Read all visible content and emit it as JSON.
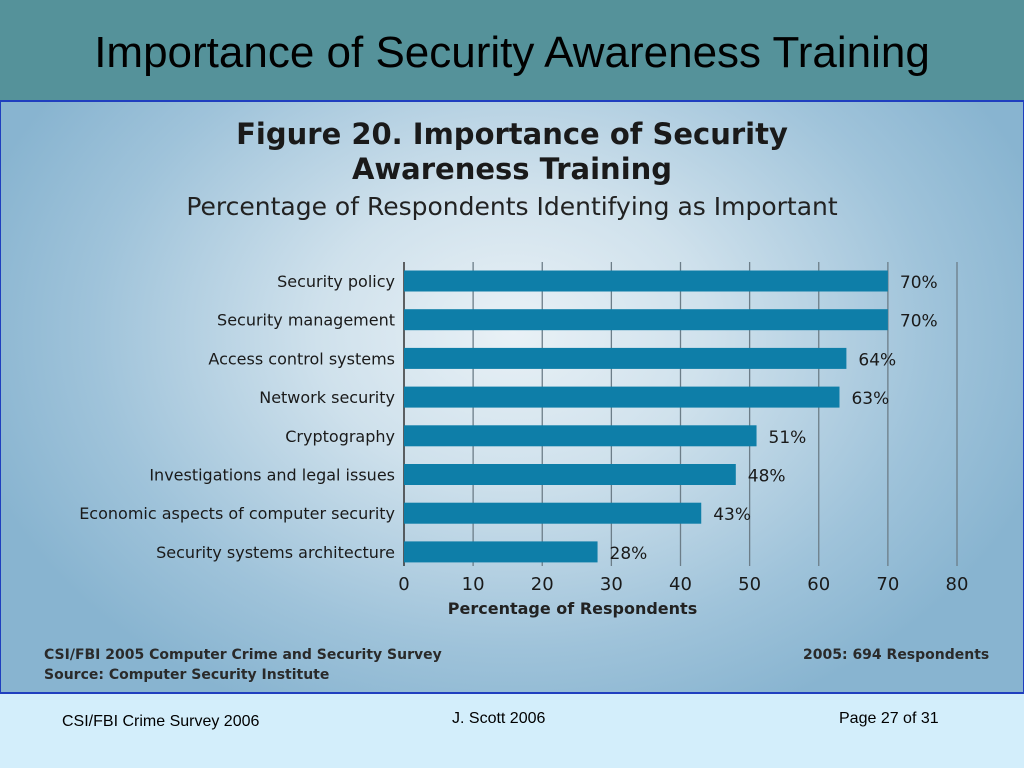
{
  "slide": {
    "title": "Importance of Security Awareness Training"
  },
  "figure": {
    "title_line1": "Figure 20. Importance of Security",
    "title_line2": "Awareness Training",
    "subtitle": "Percentage of Respondents Identifying as Important",
    "source_line1": "CSI/FBI 2005 Computer Crime and Security Survey",
    "source_line2": "Source: Computer Security Institute",
    "respondents": "2005: 694 Respondents"
  },
  "chart_data": {
    "type": "bar",
    "orientation": "horizontal",
    "categories": [
      "Security policy",
      "Security management",
      "Access control systems",
      "Network security",
      "Cryptography",
      "Investigations and legal issues",
      "Economic aspects of computer security",
      "Security systems architecture"
    ],
    "values": [
      70,
      70,
      64,
      63,
      51,
      48,
      43,
      28
    ],
    "value_labels": [
      "70%",
      "70%",
      "64%",
      "63%",
      "51%",
      "48%",
      "43%",
      "28%"
    ],
    "xlabel": "Percentage of Respondents",
    "xlim": [
      0,
      80
    ],
    "xticks": [
      0,
      10,
      20,
      30,
      40,
      50,
      60,
      70,
      80
    ],
    "grid": true,
    "bar_color": "#0e7ea8"
  },
  "footer": {
    "left": "CSI/FBI Crime Survey 2006",
    "center": "J. Scott  2006",
    "right": "Page 27 of 31"
  }
}
